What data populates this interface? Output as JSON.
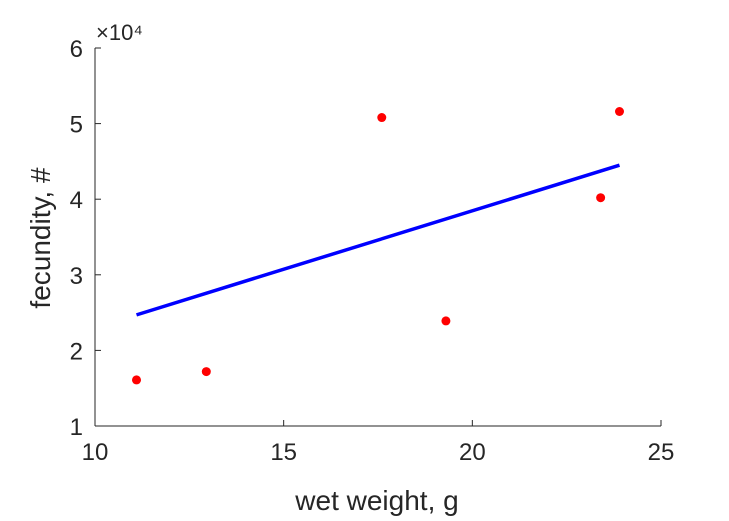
{
  "chart_data": {
    "type": "scatter",
    "xlabel": "wet weight, g",
    "ylabel": "fecundity, #",
    "xlim": [
      10,
      25
    ],
    "ylim": [
      10000,
      60000
    ],
    "x_ticks": [
      10,
      15,
      20,
      25
    ],
    "x_tick_labels": [
      "10",
      "15",
      "20",
      "25"
    ],
    "y_ticks": [
      10000,
      20000,
      30000,
      40000,
      50000,
      60000
    ],
    "y_tick_labels": [
      "1",
      "2",
      "3",
      "4",
      "5",
      "6"
    ],
    "y_exponent_label": "×10⁴",
    "points": [
      {
        "x": 11.1,
        "y": 16100
      },
      {
        "x": 12.95,
        "y": 17200
      },
      {
        "x": 17.6,
        "y": 50800
      },
      {
        "x": 19.3,
        "y": 23900
      },
      {
        "x": 23.4,
        "y": 40200
      },
      {
        "x": 23.9,
        "y": 51600
      }
    ],
    "fit_line": {
      "x": [
        11.1,
        23.9
      ],
      "y": [
        24700,
        44500
      ]
    },
    "colors": {
      "points": "#ff0000",
      "fit_line": "#0000ff",
      "axis": "#262626"
    },
    "grid": false
  }
}
